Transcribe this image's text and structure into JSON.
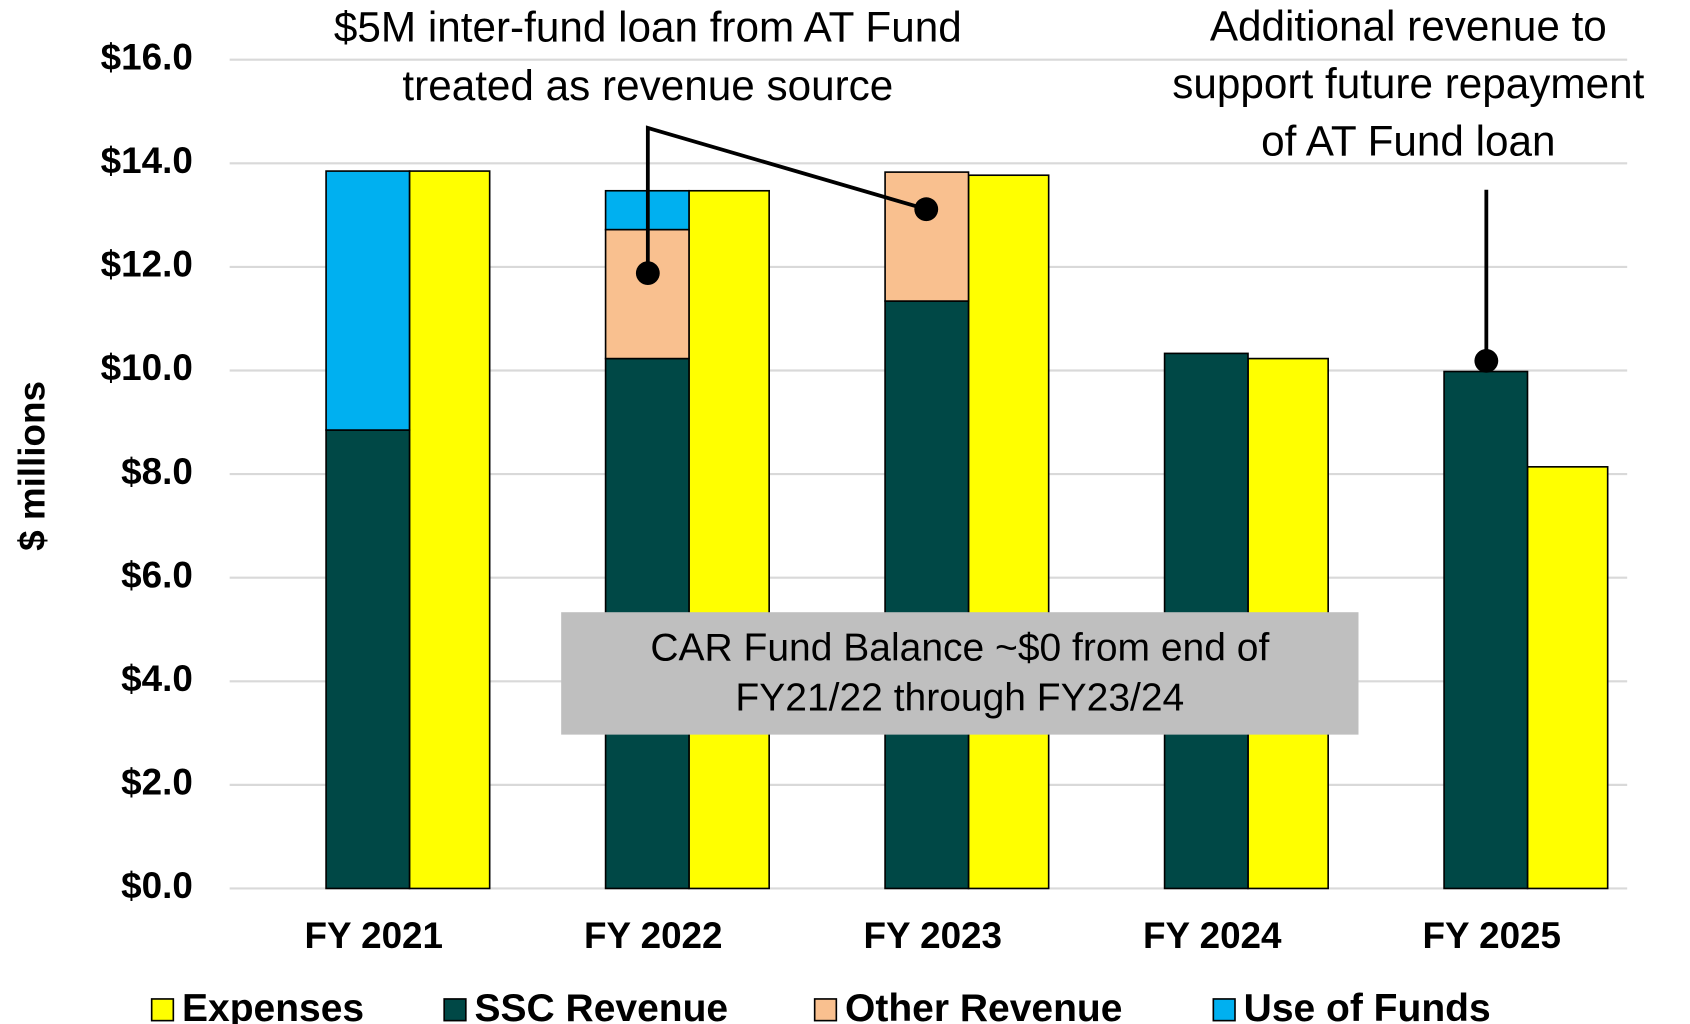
{
  "chart_data": {
    "type": "bar",
    "y_label": "$ millions",
    "categories": [
      "FY 2021",
      "FY 2022",
      "FY 2023",
      "FY 2024",
      "FY 2025"
    ],
    "series": [
      {
        "name": "Expenses",
        "color": "#ffff00",
        "values": [
          13.85,
          13.47,
          13.77,
          10.23,
          8.14
        ]
      },
      {
        "name": "SSC Revenue",
        "color": "#004846",
        "values": [
          8.85,
          10.23,
          11.34,
          10.33,
          9.98
        ],
        "stack": "revenue"
      },
      {
        "name": "Other Revenue",
        "color": "#f9c08f",
        "values": [
          null,
          2.49,
          2.49,
          null,
          null
        ],
        "stack": "revenue"
      },
      {
        "name": "Use of Funds",
        "color": "#00b0f0",
        "values": [
          5.0,
          0.75,
          null,
          null,
          null
        ],
        "stack": "revenue"
      }
    ],
    "ylim": [
      0,
      16
    ],
    "yticks": [
      {
        "value": 0,
        "label": "$0.0"
      },
      {
        "value": 2,
        "label": "$2.0"
      },
      {
        "value": 4,
        "label": "$4.0"
      },
      {
        "value": 6,
        "label": "$6.0"
      },
      {
        "value": 8,
        "label": "$8.0"
      },
      {
        "value": 10,
        "label": "$10.0"
      },
      {
        "value": 12,
        "label": "$12.0"
      },
      {
        "value": 14,
        "label": "$14.0"
      },
      {
        "value": 16,
        "label": "$16.0"
      }
    ],
    "grid": true,
    "legend": "bottom",
    "annotations": [
      {
        "lines": [
          "$5M inter-fund loan from AT Fund",
          "treated as revenue source"
        ]
      },
      {
        "lines": [
          "Additional revenue to",
          "support future repayment",
          "of AT Fund loan"
        ]
      },
      {
        "lines": [
          "CAR Fund Balance ~$0 from end of",
          "FY21/22 through FY23/24"
        ]
      }
    ]
  }
}
